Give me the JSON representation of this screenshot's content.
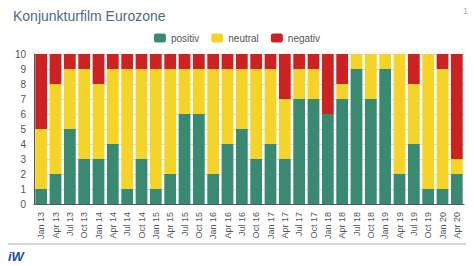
{
  "chart_data": {
    "type": "bar",
    "title": "Konjunkturfilm Eurozone",
    "categories": [
      "Jan 13",
      "Apr 13",
      "Jul 13",
      "Oct 13",
      "Jan 14",
      "Apr 14",
      "Jul 14",
      "Oct 14",
      "Jan 15",
      "Apr 15",
      "Jul 15",
      "Oct 15",
      "Jan 16",
      "Apr 16",
      "Jul 16",
      "Oct 16",
      "Jan 17",
      "Apr 17",
      "Jul 17",
      "Oct 17",
      "Jan 18",
      "Apr 18",
      "Jul 18",
      "Oct 18",
      "Jan 19",
      "Apr 19",
      "Jul 19",
      "Oct 19",
      "Jan 20",
      "Apr 20"
    ],
    "series": [
      {
        "name": "positiv",
        "color": "#3a8a72",
        "values": [
          1,
          2,
          5,
          3,
          3,
          4,
          1,
          3,
          1,
          2,
          6,
          6,
          2,
          4,
          5,
          3,
          4,
          3,
          7,
          7,
          6,
          7,
          9,
          7,
          9,
          2,
          4,
          1,
          1,
          2
        ]
      },
      {
        "name": "neutral",
        "color": "#f5d327",
        "values": [
          4,
          6,
          4,
          6,
          5,
          5,
          8,
          6,
          8,
          7,
          3,
          3,
          7,
          5,
          4,
          6,
          5,
          4,
          2,
          2,
          0,
          1,
          1,
          3,
          1,
          8,
          4,
          9,
          8,
          1
        ]
      },
      {
        "name": "negativ",
        "color": "#cc2222",
        "values": [
          5,
          2,
          1,
          1,
          2,
          1,
          1,
          1,
          1,
          1,
          1,
          1,
          1,
          1,
          1,
          1,
          1,
          3,
          1,
          1,
          4,
          2,
          0,
          0,
          0,
          0,
          2,
          0,
          1,
          7
        ]
      }
    ],
    "stacked": true,
    "ylim": [
      0,
      10
    ],
    "yticks": [
      0,
      1,
      2,
      3,
      4,
      5,
      6,
      7,
      8,
      9,
      10
    ],
    "grid": true,
    "legend": "top",
    "annotations": [
      "iW",
      "1"
    ]
  }
}
